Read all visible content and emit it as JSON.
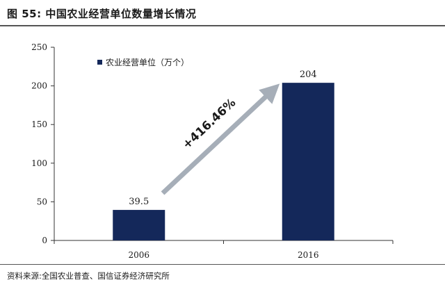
{
  "header": {
    "title": "图 55:  中国农业经营单位数量增长情况"
  },
  "footer": {
    "source": "资料来源:全国农业普查、国信证券经济研究所"
  },
  "colors": {
    "bar": "#14285a",
    "arrow": "#a6aeb8",
    "axis": "#333333"
  },
  "chart_data": {
    "type": "bar",
    "categories": [
      "2006",
      "2016"
    ],
    "series": [
      {
        "name": "农业经营单位（万个）",
        "values": [
          39.5,
          204
        ]
      }
    ],
    "data_labels": [
      "39.5",
      "204"
    ],
    "ylim": [
      0,
      250
    ],
    "yticks": [
      0,
      50,
      100,
      150,
      200,
      250
    ],
    "annotation": "+416.46%",
    "legend": "top-left",
    "grid": false
  }
}
